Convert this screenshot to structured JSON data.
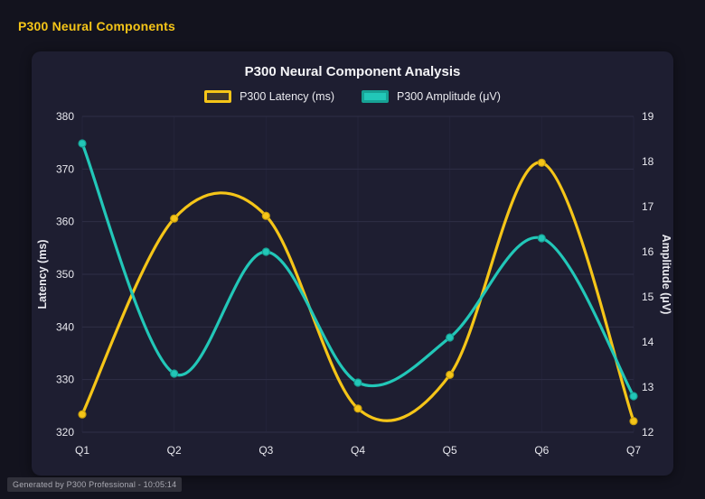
{
  "page": {
    "heading": "P300 Neural Components",
    "footer": "Generated by P300 Professional - 10:05:14"
  },
  "chart_data": {
    "type": "line",
    "title": "P300 Neural Component Analysis",
    "categories": [
      "Q1",
      "Q2",
      "Q3",
      "Q4",
      "Q5",
      "Q6",
      "Q7"
    ],
    "series": [
      {
        "name": "P300 Latency (ms)",
        "axis": "left",
        "color": "#f5c518",
        "marker_stroke": "#c79e0d",
        "swatch_fill": "rgba(245,197,24,0.15)",
        "swatch_border": "#f5c518",
        "values": [
          323.4,
          360.6,
          361.1,
          324.5,
          330.9,
          371.2,
          322.1
        ]
      },
      {
        "name": "P300 Amplitude (μV)",
        "axis": "right",
        "color": "#22c7b8",
        "marker_stroke": "#17a194",
        "swatch_fill": "#22c7b8",
        "swatch_border": "#17a194",
        "values": [
          18.4,
          13.3,
          16.0,
          13.1,
          14.1,
          16.3,
          12.8
        ]
      }
    ],
    "y_left": {
      "label": "Latency (ms)",
      "min": 320,
      "max": 380,
      "step": 10
    },
    "y_right": {
      "label": "Amplitude (μV)",
      "min": 12,
      "max": 19,
      "step": 1
    },
    "grid": true,
    "legend_position": "top",
    "colors": {
      "grid": "#2e2e46",
      "grid_vertical": "#24243a",
      "tick_text": "#e8e8ee",
      "axis_title": "#e8e8ee"
    }
  }
}
